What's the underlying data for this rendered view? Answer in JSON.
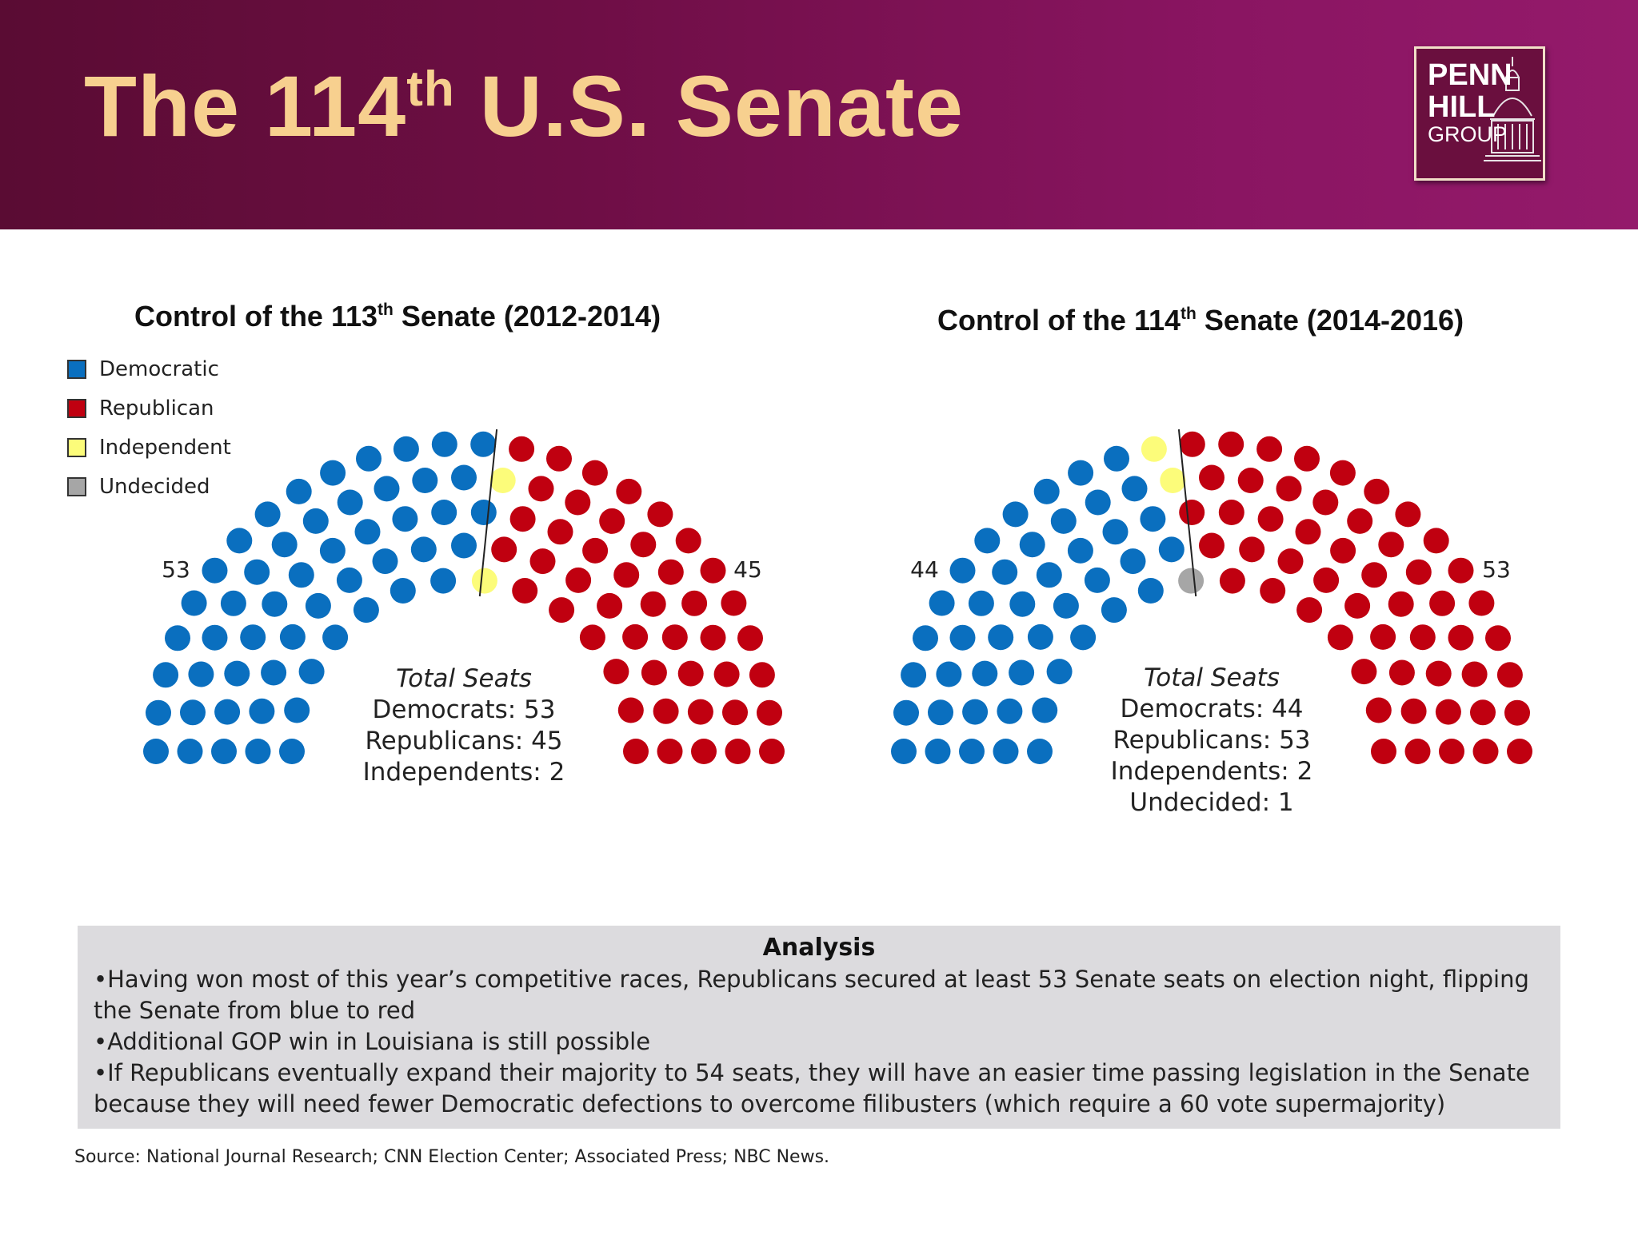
{
  "header": {
    "title_prefix": "The 114",
    "title_sup": "th",
    "title_suffix": " U.S. Senate",
    "logo": {
      "line1": "PENN",
      "line2": "HILL",
      "line3": "GROUP"
    }
  },
  "legend": [
    {
      "label": "Democratic",
      "color": "#0a6fbf"
    },
    {
      "label": "Republican",
      "color": "#c00010"
    },
    {
      "label": "Independent",
      "color": "#fcfc7a"
    },
    {
      "label": "Undecided",
      "color": "#a6a6a6"
    }
  ],
  "chart_data": [
    {
      "type": "hemicycle",
      "title_prefix": "Control of the 113",
      "title_sup": "th",
      "title_suffix": " Senate (2012-2014)",
      "left_count": "53",
      "right_count": "45",
      "totals_heading": "Total Seats",
      "totals": [
        "Democrats: 53",
        "Republicans: 45",
        "Independents: 2"
      ],
      "series": [
        {
          "name": "Democratic",
          "value": 53,
          "color": "#0a6fbf"
        },
        {
          "name": "Independent",
          "value": 2,
          "color": "#fcfc7a"
        },
        {
          "name": "Republican",
          "value": 45,
          "color": "#c00010"
        }
      ]
    },
    {
      "type": "hemicycle",
      "title_prefix": "Control of the 114",
      "title_sup": "th",
      "title_suffix": " Senate (2014-2016)",
      "left_count": "44",
      "right_count": "53",
      "totals_heading": "Total Seats",
      "totals": [
        "Democrats: 44",
        "Republicans: 53",
        "Independents: 2",
        "Undecided: 1"
      ],
      "series": [
        {
          "name": "Democratic",
          "value": 44,
          "color": "#0a6fbf"
        },
        {
          "name": "Independent",
          "value": 2,
          "color": "#fcfc7a"
        },
        {
          "name": "Undecided",
          "value": 1,
          "color": "#a6a6a6"
        },
        {
          "name": "Republican",
          "value": 53,
          "color": "#c00010"
        }
      ]
    }
  ],
  "analysis": {
    "title": "Analysis",
    "bullets": [
      "•Having won most of this year’s competitive races, Republicans secured at least 53 Senate seats on election night, flipping the Senate from blue to red",
      "•Additional GOP win in Louisiana is still possible",
      "•If Republicans eventually expand their majority to 54 seats, they will have an easier time passing legislation in the Senate because they will need fewer Democratic defections to overcome filibusters (which require a 60 vote supermajority)"
    ]
  },
  "source": "Source: National Journal Research; CNN Election Center; Associated Press; NBC News."
}
